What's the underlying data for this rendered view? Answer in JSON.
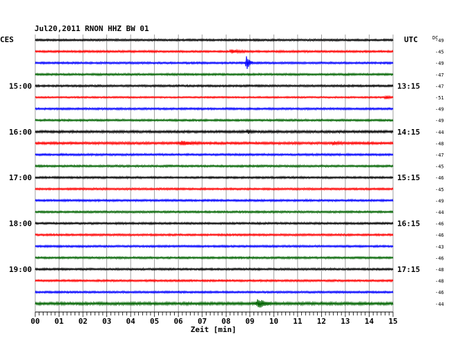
{
  "chart_data": {
    "type": "line",
    "title": "Jul20,2011   RNON HHZ BW 01",
    "left_timezone": "CES",
    "right_timezone": "UTC",
    "offset_header": "DC",
    "xlabel": "Zeit [min]",
    "xlim": [
      0,
      15
    ],
    "x_tick_labels": [
      "00",
      "01",
      "02",
      "03",
      "04",
      "05",
      "06",
      "07",
      "08",
      "09",
      "10",
      "11",
      "12",
      "13",
      "14",
      "15"
    ],
    "left_hour_labels": [
      {
        "row": 4,
        "label": "15:00"
      },
      {
        "row": 8,
        "label": "16:00"
      },
      {
        "row": 12,
        "label": "17:00"
      },
      {
        "row": 16,
        "label": "18:00"
      },
      {
        "row": 20,
        "label": "19:00"
      }
    ],
    "right_time_labels": [
      {
        "row": 4,
        "label": "13:15"
      },
      {
        "row": 8,
        "label": "14:15"
      },
      {
        "row": 12,
        "label": "15:15"
      },
      {
        "row": 16,
        "label": "16:15"
      },
      {
        "row": 20,
        "label": "17:15"
      }
    ],
    "trace_colors": [
      "#000000",
      "#ff0000",
      "#0000ff",
      "#006400"
    ],
    "rows": [
      {
        "offset": "-49",
        "noise": 0.5,
        "events": []
      },
      {
        "offset": "-45",
        "noise": 0.5,
        "events": [
          {
            "t": 8.2,
            "amp": 2.5,
            "dur": 0.6
          }
        ]
      },
      {
        "offset": "-49",
        "noise": 0.5,
        "events": [
          {
            "t": 8.85,
            "amp": 11,
            "dur": 0.25
          }
        ]
      },
      {
        "offset": "-47",
        "noise": 0.5,
        "events": []
      },
      {
        "offset": "-47",
        "noise": 0.5,
        "events": []
      },
      {
        "offset": "-51",
        "noise": 0.4,
        "events": [
          {
            "t": 14.7,
            "amp": 2.5,
            "dur": 0.3
          }
        ]
      },
      {
        "offset": "-49",
        "noise": 0.5,
        "events": []
      },
      {
        "offset": "-49",
        "noise": 0.5,
        "events": []
      },
      {
        "offset": "-44",
        "noise": 0.6,
        "events": [
          {
            "t": 8.9,
            "amp": 3,
            "dur": 0.2
          }
        ]
      },
      {
        "offset": "-48",
        "noise": 0.6,
        "events": [
          {
            "t": 6.1,
            "amp": 3,
            "dur": 0.8
          },
          {
            "t": 12.5,
            "amp": 2,
            "dur": 0.4
          }
        ]
      },
      {
        "offset": "-47",
        "noise": 0.5,
        "events": []
      },
      {
        "offset": "-45",
        "noise": 0.5,
        "events": []
      },
      {
        "offset": "-46",
        "noise": 0.5,
        "events": []
      },
      {
        "offset": "-45",
        "noise": 0.5,
        "events": []
      },
      {
        "offset": "-49",
        "noise": 0.5,
        "events": []
      },
      {
        "offset": "-44",
        "noise": 0.5,
        "events": []
      },
      {
        "offset": "-46",
        "noise": 0.5,
        "events": []
      },
      {
        "offset": "-46",
        "noise": 0.5,
        "events": []
      },
      {
        "offset": "-43",
        "noise": 0.5,
        "events": []
      },
      {
        "offset": "-46",
        "noise": 0.5,
        "events": []
      },
      {
        "offset": "-48",
        "noise": 0.5,
        "events": []
      },
      {
        "offset": "-48",
        "noise": 0.5,
        "events": []
      },
      {
        "offset": "-46",
        "noise": 0.5,
        "events": []
      },
      {
        "offset": "-44",
        "noise": 0.7,
        "events": [
          {
            "t": 9.3,
            "amp": 7,
            "dur": 0.6
          }
        ]
      }
    ]
  }
}
